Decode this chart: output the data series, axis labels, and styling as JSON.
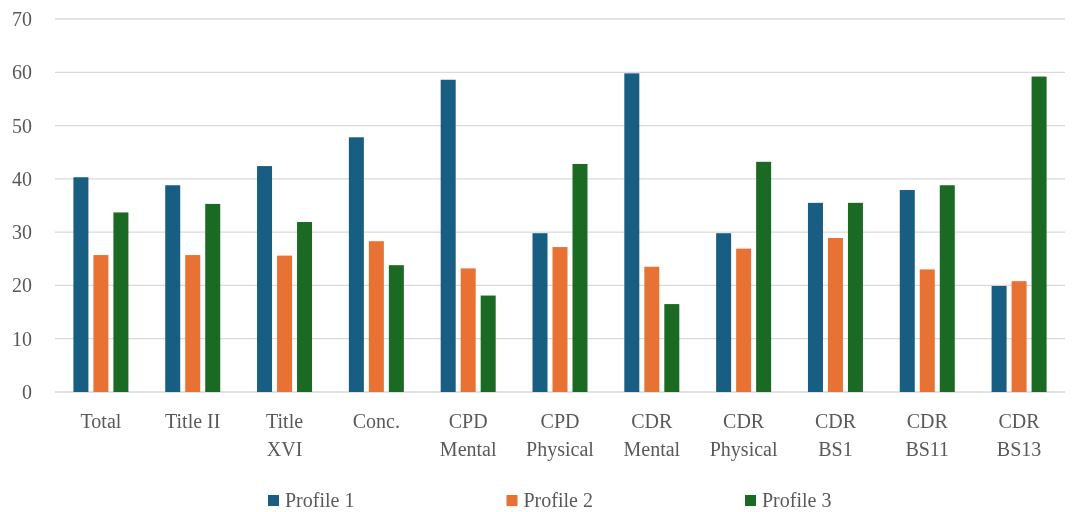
{
  "chart_data": {
    "type": "bar",
    "categories": [
      "Total",
      "Title II",
      "Title\nXVI",
      "Conc.",
      "CPD\nMental",
      "CPD\nPhysical",
      "CDR\nMental",
      "CDR\nPhysical",
      "CDR\nBS1",
      "CDR\nBS11",
      "CDR\nBS13"
    ],
    "series": [
      {
        "name": "Profile 1",
        "color": "#175e82",
        "values": [
          40.3,
          38.8,
          42.4,
          47.8,
          58.6,
          29.8,
          59.8,
          29.8,
          35.5,
          37.9,
          19.9
        ]
      },
      {
        "name": "Profile 2",
        "color": "#e87234",
        "values": [
          25.7,
          25.7,
          25.6,
          28.3,
          23.2,
          27.2,
          23.5,
          26.9,
          28.9,
          23.0,
          20.8
        ]
      },
      {
        "name": "Profile 3",
        "color": "#1b6a24",
        "values": [
          33.7,
          35.3,
          31.9,
          23.8,
          18.1,
          42.8,
          16.5,
          43.2,
          35.5,
          38.8,
          59.2
        ]
      }
    ],
    "ylim": [
      0,
      70
    ],
    "yticks": [
      0,
      10,
      20,
      30,
      40,
      50,
      60,
      70
    ],
    "grid": true,
    "legend": "bottom"
  }
}
